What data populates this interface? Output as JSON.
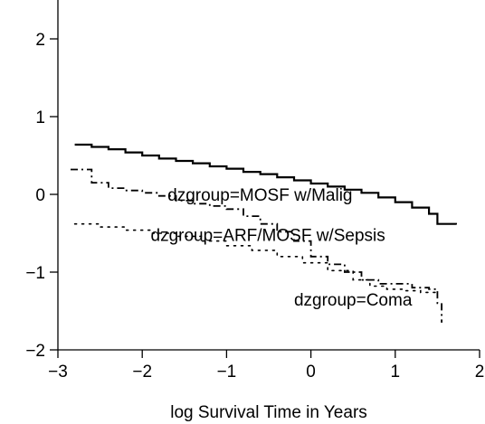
{
  "chart_data": {
    "type": "line",
    "title": "",
    "xlabel": "log Survival Time in Years",
    "ylabel": "",
    "xlim": [
      -3,
      2
    ],
    "ylim": [
      -2,
      2.5
    ],
    "xticks": [
      -3,
      -2,
      -1,
      0,
      1,
      2
    ],
    "xtick_labels": [
      "−3",
      "−2",
      "−1",
      "0",
      "1",
      "2"
    ],
    "yticks": [
      -2,
      -1,
      0,
      1,
      2
    ],
    "ytick_labels": [
      "−2",
      "−1",
      "0",
      "1",
      "2"
    ],
    "grid": false,
    "legend": "none",
    "series": [
      {
        "style": "solid",
        "x": [
          -2.8,
          -2.6,
          -2.4,
          -2.2,
          -2.0,
          -1.8,
          -1.6,
          -1.4,
          -1.2,
          -1.0,
          -0.8,
          -0.6,
          -0.4,
          -0.2,
          0.0,
          0.2,
          0.4,
          0.6,
          0.8,
          1.0,
          1.2,
          1.4,
          1.5,
          1.72
        ],
        "y": [
          0.64,
          0.61,
          0.58,
          0.54,
          0.5,
          0.46,
          0.43,
          0.4,
          0.36,
          0.33,
          0.29,
          0.26,
          0.22,
          0.18,
          0.14,
          0.1,
          0.06,
          0.02,
          -0.04,
          -0.1,
          -0.17,
          -0.25,
          -0.38,
          -0.39
        ]
      },
      {
        "style": "dashdot",
        "x": [
          -2.85,
          -2.6,
          -2.4,
          -2.2,
          -2.0,
          -1.8,
          -1.6,
          -1.4,
          -1.2,
          -1.0,
          -0.8,
          -0.6,
          -0.4,
          -0.2,
          0.0,
          0.2,
          0.4,
          0.6,
          0.8,
          1.0,
          1.2,
          1.4,
          1.5,
          1.55
        ],
        "y": [
          0.32,
          0.15,
          0.08,
          0.05,
          0.02,
          -0.02,
          -0.08,
          -0.12,
          -0.15,
          -0.19,
          -0.28,
          -0.38,
          -0.48,
          -0.6,
          -0.8,
          -0.9,
          -1.0,
          -1.1,
          -1.15,
          -1.15,
          -1.2,
          -1.22,
          -1.4,
          -1.65
        ]
      },
      {
        "style": "dotted",
        "x": [
          -2.8,
          -2.5,
          -2.2,
          -1.9,
          -1.6,
          -1.3,
          -1.0,
          -0.7,
          -0.4,
          -0.1,
          0.2,
          0.5,
          0.7,
          0.9,
          1.1,
          1.3,
          1.5
        ],
        "y": [
          -0.38,
          -0.42,
          -0.46,
          -0.5,
          -0.54,
          -0.6,
          -0.66,
          -0.72,
          -0.8,
          -0.88,
          -0.98,
          -1.1,
          -1.18,
          -1.22,
          -1.24,
          -1.26,
          -1.28
        ]
      }
    ],
    "annotations": [
      {
        "text": "dzgroup=MOSF w/Malig",
        "x": -1.7,
        "y": 0.0
      },
      {
        "text": "dzgroup=ARF/MOSF w/Sepsis",
        "x": -1.9,
        "y": -0.52
      },
      {
        "text": "dzgroup=Coma",
        "x": -0.2,
        "y": -1.35
      }
    ]
  }
}
